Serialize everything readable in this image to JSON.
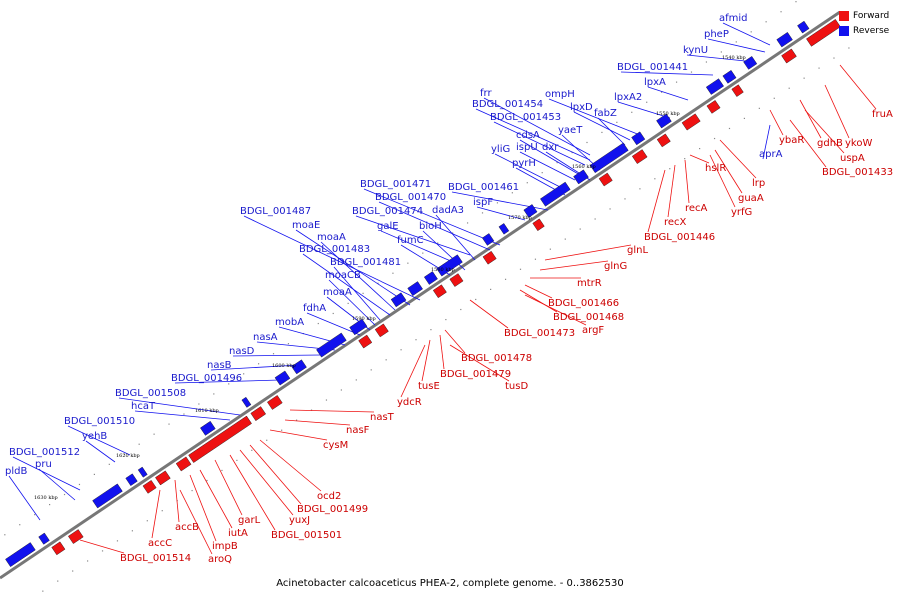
{
  "caption": "Acinetobacter calcoaceticus PHEA-2, complete genome. - 0..3862530",
  "legend": {
    "forward": {
      "label": "Forward",
      "color": "#ee1111"
    },
    "reverse": {
      "label": "Reverse",
      "color": "#1111ee"
    }
  },
  "colors": {
    "forward": "#ee1111",
    "reverse": "#1111ee",
    "backbone": "#777777"
  },
  "ticks": [
    "1540 kbp",
    "1550 kbp",
    "1560 kbp",
    "1570 kbp",
    "1580 kbp",
    "1590 kbp",
    "1600 kbp",
    "1610 kbp",
    "1620 kbp",
    "1630 kbp"
  ],
  "reverse_genes": [
    "afmid",
    "pheP",
    "kynU",
    "BDGL_001441",
    "lpxA",
    "lpxA2",
    "ompH",
    "lpxD",
    "fabZ",
    "frr",
    "BDGL_001454",
    "BDGL_001453",
    "yaeT",
    "cdsA",
    "dxr",
    "ispU",
    "yliG",
    "pyrH",
    "BDGL_001461",
    "ispF",
    "BDGL_001471",
    "BDGL_001470",
    "BDGL_001474",
    "dadA3",
    "galE",
    "bioH",
    "fumC",
    "BDGL_001487",
    "moaE",
    "moaA",
    "BDGL_001483",
    "BDGL_001481",
    "moaCB",
    "moaA",
    "fdhA",
    "mobA",
    "nasA",
    "nasD",
    "nasB",
    "BDGL_001496",
    "BDGL_001508",
    "hcaT",
    "BDGL_001510",
    "yehB",
    "BDGL_001512",
    "pru",
    "pldB",
    "aprA"
  ],
  "forward_genes": [
    "fruA",
    "ykoW",
    "gdhB",
    "uspA",
    "BDGL_001433",
    "ybaR",
    "lrp",
    "guaA",
    "yrfG",
    "hslR",
    "recA",
    "recX",
    "BDGL_001446",
    "glnL",
    "glnG",
    "mtrR",
    "BDGL_001466",
    "BDGL_001468",
    "argF",
    "BDGL_001473",
    "BDGL_001478",
    "BDGL_001479",
    "tusD",
    "tusE",
    "ydcR",
    "nasT",
    "nasF",
    "cysM",
    "ocd2",
    "BDGL_001499",
    "yuxJ",
    "BDGL_001501",
    "garL",
    "iutA",
    "impB",
    "accB",
    "accC",
    "aroQ",
    "BDGL_001514"
  ]
}
